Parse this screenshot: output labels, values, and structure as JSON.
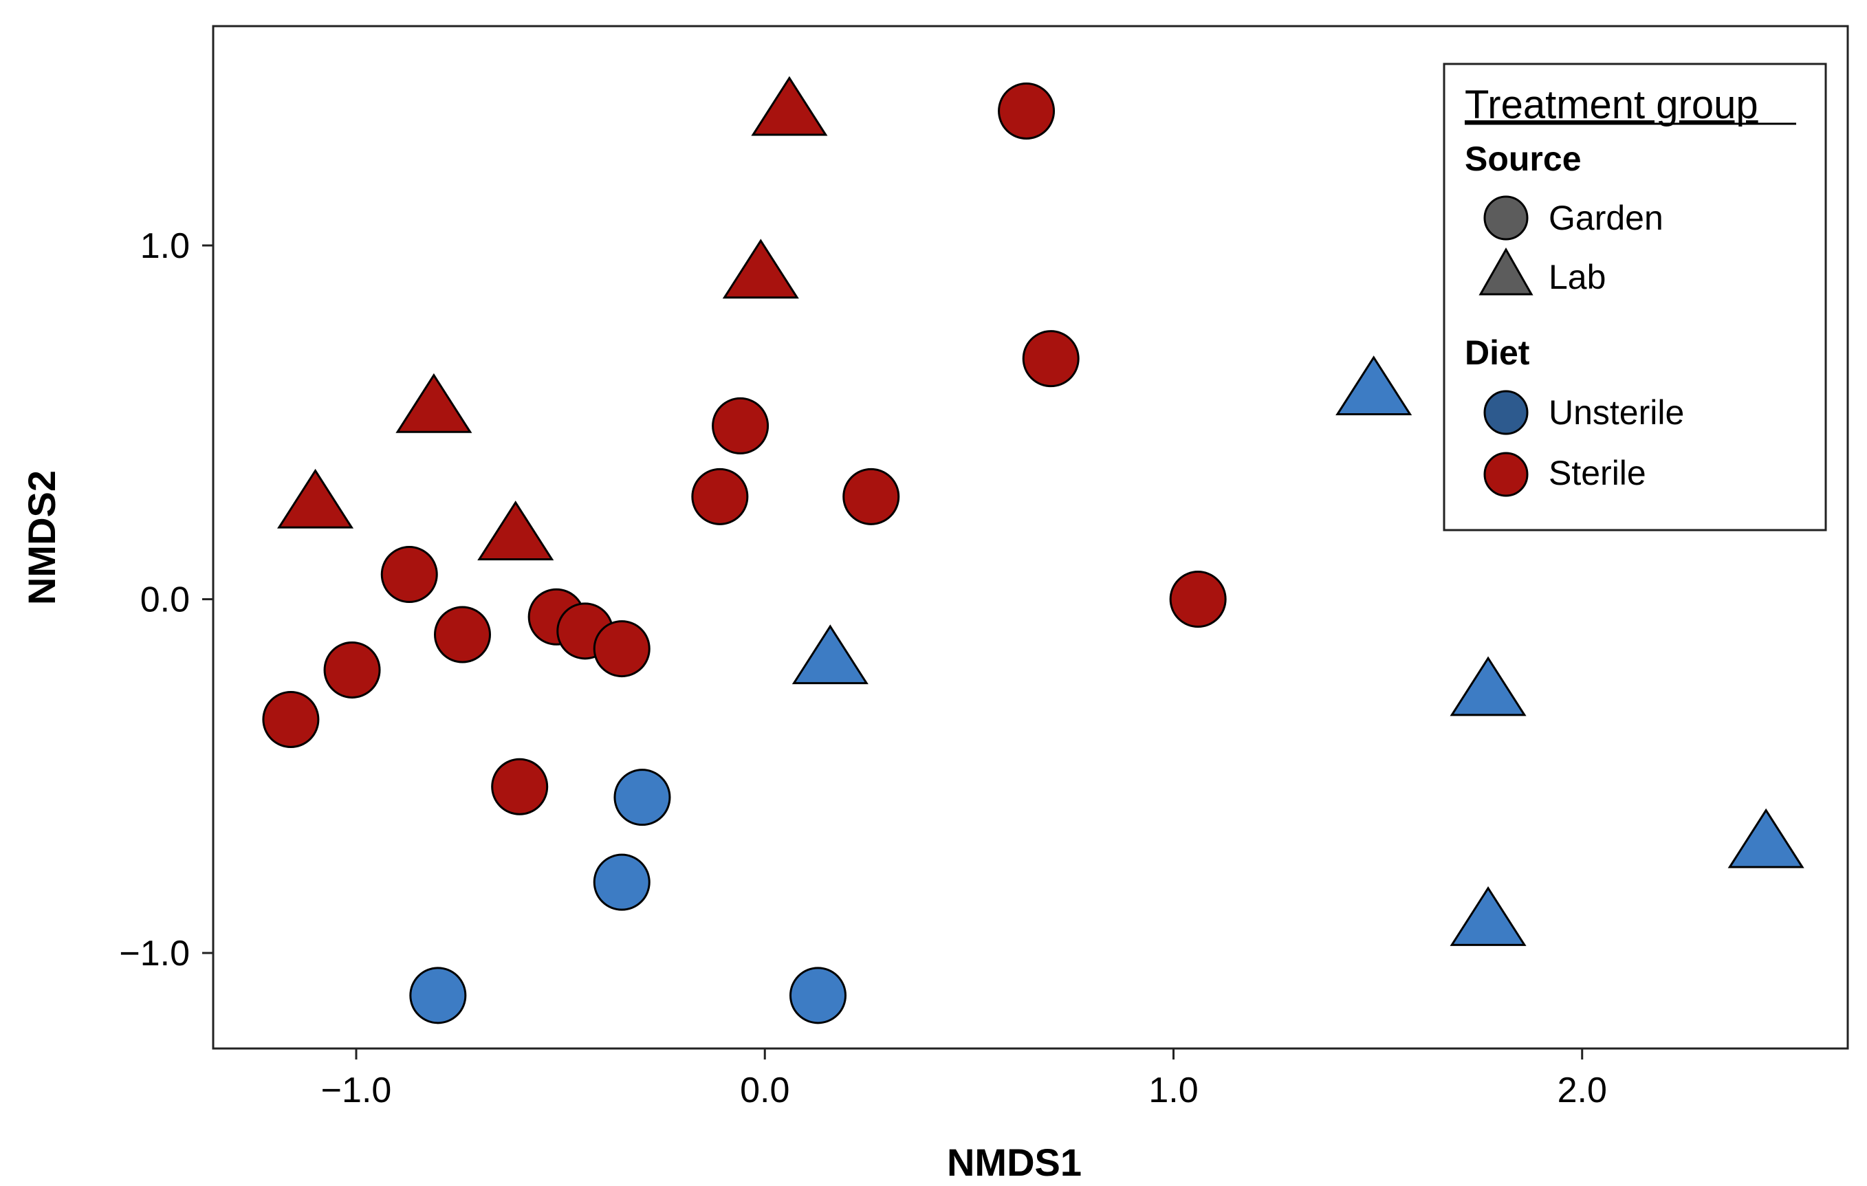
{
  "chart_data": {
    "type": "scatter",
    "title": "",
    "xlabel": "NMDS1",
    "ylabel": "NMDS2",
    "xlim": [
      -1.35,
      2.65
    ],
    "ylim": [
      -1.27,
      1.62
    ],
    "xticks": [
      -1.0,
      0.0,
      1.0,
      2.0
    ],
    "xtick_labels": [
      "−1.0",
      "0.0",
      "1.0",
      "2.0"
    ],
    "yticks": [
      -1.0,
      0.0,
      1.0
    ],
    "ytick_labels": [
      "−1.0",
      "0.0",
      "1.0"
    ],
    "grid": false,
    "legend": {
      "placement": "top-right",
      "title": "Treatment group",
      "source_heading": "Source",
      "diet_heading": "Diet",
      "source_entries": [
        {
          "label": "Garden",
          "shape": "circle"
        },
        {
          "label": "Lab",
          "shape": "triangle"
        }
      ],
      "diet_entries": [
        {
          "label": "Unsterile",
          "color": "#2d5a8e"
        },
        {
          "label": "Sterile",
          "color": "#a8120e"
        }
      ]
    },
    "colors": {
      "Sterile": "#a8120e",
      "Unsterile": "#3d7cc4",
      "legend_shape": "#5c5c5c",
      "legend_unsterile": "#2d5a8e"
    },
    "series": [
      {
        "name": "Garden / Sterile",
        "source": "Garden",
        "diet": "Sterile",
        "shape": "circle",
        "points": [
          [
            0.64,
            1.38
          ],
          [
            0.7,
            0.68
          ],
          [
            -0.06,
            0.49
          ],
          [
            -0.11,
            0.29
          ],
          [
            0.26,
            0.29
          ],
          [
            -0.87,
            0.07
          ],
          [
            1.06,
            0.0
          ],
          [
            -0.74,
            -0.1
          ],
          [
            -0.51,
            -0.05
          ],
          [
            -0.44,
            -0.09
          ],
          [
            -0.35,
            -0.14
          ],
          [
            -1.01,
            -0.2
          ],
          [
            -1.16,
            -0.34
          ],
          [
            -0.6,
            -0.53
          ]
        ]
      },
      {
        "name": "Lab / Sterile",
        "source": "Lab",
        "diet": "Sterile",
        "shape": "triangle",
        "points": [
          [
            0.06,
            1.38
          ],
          [
            -0.01,
            0.92
          ],
          [
            -0.81,
            0.54
          ],
          [
            -1.1,
            0.27
          ],
          [
            -0.61,
            0.18
          ]
        ]
      },
      {
        "name": "Garden / Unsterile",
        "source": "Garden",
        "diet": "Unsterile",
        "shape": "circle",
        "points": [
          [
            -0.3,
            -0.56
          ],
          [
            -0.35,
            -0.8
          ],
          [
            -0.8,
            -1.12
          ],
          [
            0.13,
            -1.12
          ]
        ]
      },
      {
        "name": "Lab / Unsterile",
        "source": "Lab",
        "diet": "Unsterile",
        "shape": "triangle",
        "points": [
          [
            1.49,
            0.59
          ],
          [
            0.16,
            -0.17
          ],
          [
            1.77,
            -0.26
          ],
          [
            2.45,
            -0.69
          ],
          [
            1.77,
            -0.91
          ]
        ]
      }
    ]
  }
}
